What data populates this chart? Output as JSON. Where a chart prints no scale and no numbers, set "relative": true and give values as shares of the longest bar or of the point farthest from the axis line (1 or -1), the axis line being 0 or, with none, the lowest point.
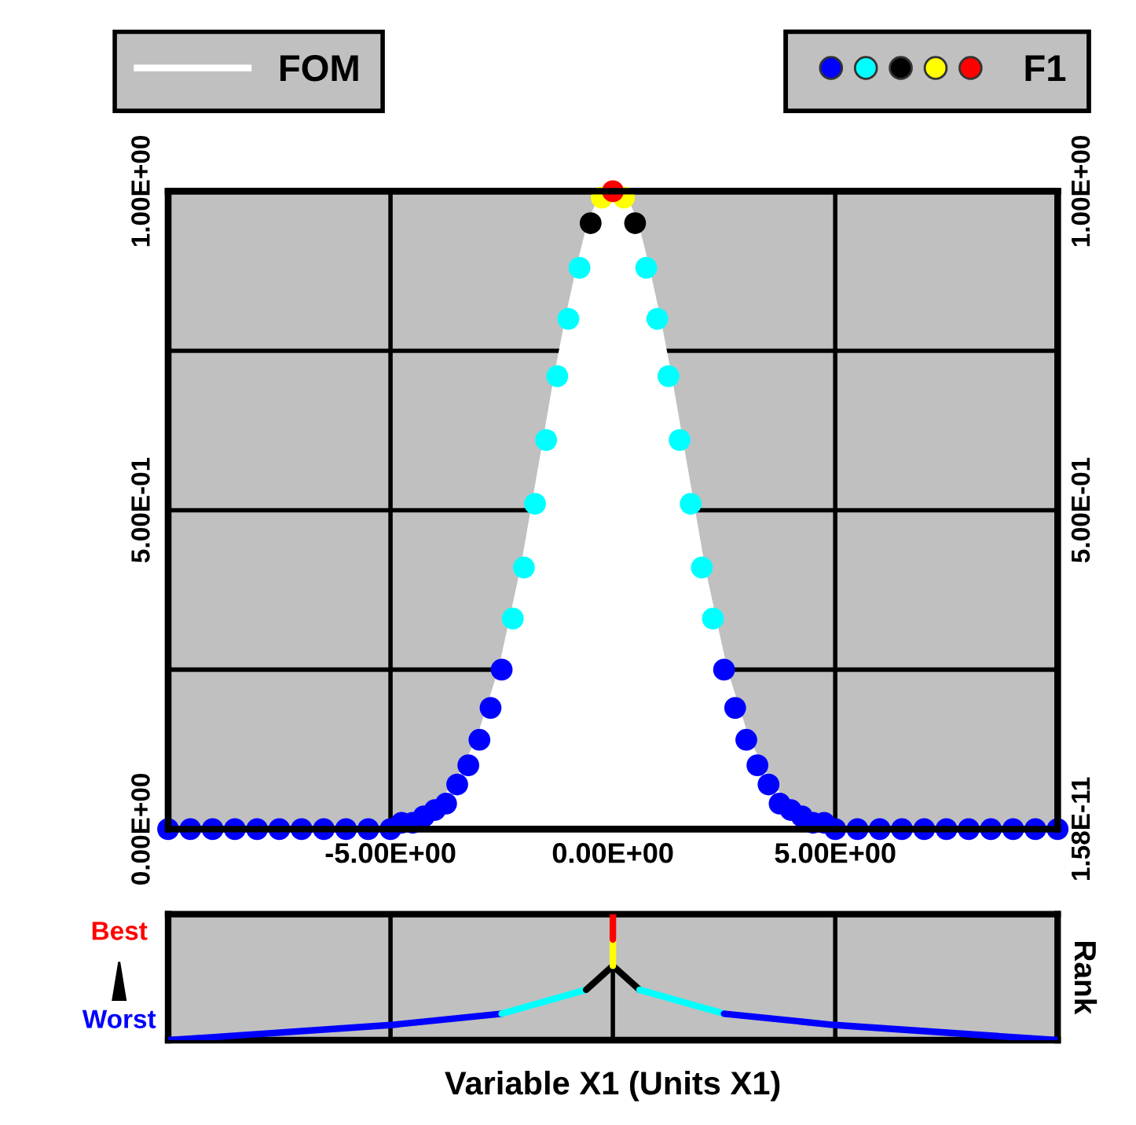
{
  "chart_data": [
    {
      "type": "line",
      "legend": "top",
      "grid": true,
      "xlim": [
        -10,
        10
      ],
      "xticks": [
        {
          "value": -5,
          "label": "-5.00E+00"
        },
        {
          "value": 0,
          "label": "0.00E+00"
        },
        {
          "value": 5,
          "label": "5.00E+00"
        }
      ],
      "ylim": [
        0,
        1
      ],
      "yticks": [
        {
          "value": 0,
          "label": "0.00E+00"
        },
        {
          "value": 0.25,
          "label": null
        },
        {
          "value": 0.5,
          "label": "5.00E-01"
        },
        {
          "value": 0.75,
          "label": null
        },
        {
          "value": 1,
          "label": "1.00E+00"
        }
      ],
      "y2lim": [
        0,
        1
      ],
      "y2ticks": [
        {
          "value": 1.58e-11,
          "label": "1.58E-11"
        },
        {
          "value": 0.5,
          "label": "5.00E-01"
        },
        {
          "value": 1,
          "label": "1.00E+00"
        }
      ],
      "series": [
        {
          "name": "FOM",
          "type": "area",
          "color": "#ffffff",
          "x": [
            -10,
            -8,
            -6,
            -5,
            -4.5,
            -4,
            -3.5,
            -3,
            -2.5,
            -2.25,
            -2,
            -1.75,
            -1.5,
            -1.25,
            -1,
            -0.75,
            -0.5,
            -0.25,
            0,
            0.25,
            0.5,
            0.75,
            1,
            1.25,
            1.5,
            1.75,
            2,
            2.25,
            2.5,
            3,
            3.5,
            4,
            4.5,
            5,
            6,
            8,
            10
          ],
          "values": [
            0.0,
            0.0,
            0.0,
            0.0,
            0.01,
            0.03,
            0.07,
            0.14,
            0.25,
            0.33,
            0.41,
            0.51,
            0.61,
            0.71,
            0.8,
            0.88,
            0.95,
            0.99,
            1.0,
            0.99,
            0.95,
            0.88,
            0.8,
            0.71,
            0.61,
            0.51,
            0.41,
            0.33,
            0.25,
            0.14,
            0.07,
            0.03,
            0.01,
            0.0,
            0.0,
            0.0,
            0.0
          ]
        },
        {
          "name": "F1",
          "type": "scatter",
          "x": [
            -10,
            -9.5,
            -9,
            -8.5,
            -8,
            -7.5,
            -7,
            -6.5,
            -6,
            -5.5,
            -5,
            -4.75,
            -4.5,
            -4.25,
            -4,
            -3.75,
            -3.5,
            -3.25,
            -3,
            -2.75,
            -2.5,
            -2.25,
            -2,
            -1.75,
            -1.5,
            -1.25,
            -1,
            -0.75,
            -0.5,
            -0.25,
            0,
            0.25,
            0.5,
            0.75,
            1,
            1.25,
            1.5,
            1.75,
            2,
            2.25,
            2.5,
            2.75,
            3,
            3.25,
            3.5,
            3.75,
            4,
            4.25,
            4.5,
            4.75,
            5,
            5.5,
            6,
            6.5,
            7,
            7.5,
            8,
            8.5,
            9,
            9.5,
            10
          ],
          "values": [
            0.0,
            0.0,
            0.0,
            0.0,
            0.0,
            0.0,
            0.0,
            0.0,
            0.0,
            0.0,
            0.0,
            0.01,
            0.01,
            0.02,
            0.03,
            0.04,
            0.07,
            0.1,
            0.14,
            0.19,
            0.25,
            0.33,
            0.41,
            0.51,
            0.61,
            0.71,
            0.8,
            0.88,
            0.95,
            0.99,
            1.0,
            0.99,
            0.95,
            0.88,
            0.8,
            0.71,
            0.61,
            0.51,
            0.41,
            0.33,
            0.25,
            0.19,
            0.14,
            0.1,
            0.07,
            0.04,
            0.03,
            0.02,
            0.01,
            0.01,
            0.0,
            0.0,
            0.0,
            0.0,
            0.0,
            0.0,
            0.0,
            0.0,
            0.0,
            0.0,
            0.0
          ],
          "colors": [
            "#0000ff",
            "#0000ff",
            "#0000ff",
            "#0000ff",
            "#0000ff",
            "#0000ff",
            "#0000ff",
            "#0000ff",
            "#0000ff",
            "#0000ff",
            "#0000ff",
            "#0000ff",
            "#0000ff",
            "#0000ff",
            "#0000ff",
            "#0000ff",
            "#0000ff",
            "#0000ff",
            "#0000ff",
            "#0000ff",
            "#0000ff",
            "#00ffff",
            "#00ffff",
            "#00ffff",
            "#00ffff",
            "#00ffff",
            "#00ffff",
            "#00ffff",
            "#000000",
            "#ffff00",
            "#ff0000",
            "#ffff00",
            "#000000",
            "#00ffff",
            "#00ffff",
            "#00ffff",
            "#00ffff",
            "#00ffff",
            "#00ffff",
            "#00ffff",
            "#0000ff",
            "#0000ff",
            "#0000ff",
            "#0000ff",
            "#0000ff",
            "#0000ff",
            "#0000ff",
            "#0000ff",
            "#0000ff",
            "#0000ff",
            "#0000ff",
            "#0000ff",
            "#0000ff",
            "#0000ff",
            "#0000ff",
            "#0000ff",
            "#0000ff",
            "#0000ff",
            "#0000ff",
            "#0000ff",
            "#0000ff"
          ]
        }
      ]
    },
    {
      "type": "line",
      "relative": true,
      "grid": "x",
      "tick_labels": false,
      "xlabel": "Variable X1 (Units X1)",
      "ylabel": "Rank",
      "annotations": [
        "Best",
        "Worst"
      ],
      "xlim": [
        -10,
        10
      ],
      "xticks": [
        -5,
        0,
        5
      ],
      "series": [
        {
          "color": "#0000ff",
          "x": [
            -10,
            -5,
            -2.5
          ],
          "values": [
            0.0,
            0.12,
            0.21
          ]
        },
        {
          "color": "#00ffff",
          "x": [
            -2.5,
            -0.6
          ],
          "values": [
            0.21,
            0.4
          ]
        },
        {
          "color": "#000000",
          "x": [
            -0.6,
            0
          ],
          "values": [
            0.4,
            0.59
          ]
        },
        {
          "color": "#000000",
          "x": [
            0,
            0.6
          ],
          "values": [
            0.59,
            0.4
          ]
        },
        {
          "color": "#00ffff",
          "x": [
            0.6,
            2.5
          ],
          "values": [
            0.4,
            0.21
          ]
        },
        {
          "color": "#0000ff",
          "x": [
            2.5,
            5,
            10
          ],
          "values": [
            0.21,
            0.12,
            0.0
          ]
        },
        {
          "color": "#ffff00",
          "x": [
            0,
            0
          ],
          "values": [
            0.59,
            0.8
          ]
        },
        {
          "color": "#ff0000",
          "x": [
            0,
            0
          ],
          "values": [
            0.8,
            1.0
          ]
        }
      ]
    }
  ]
}
